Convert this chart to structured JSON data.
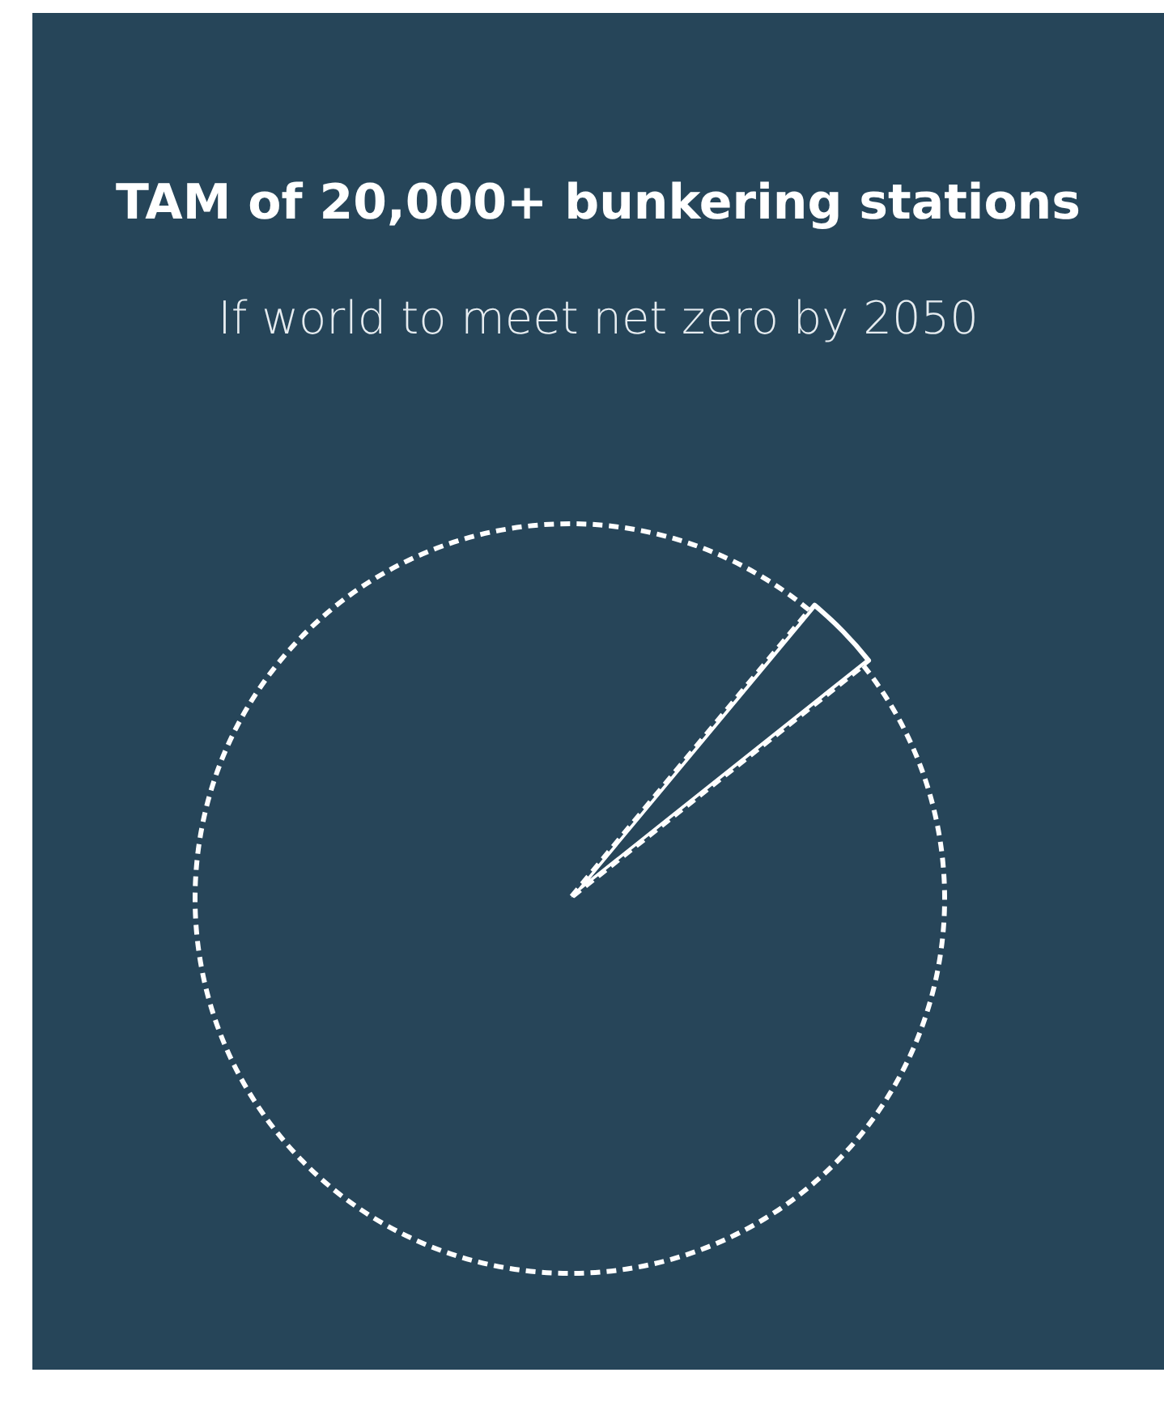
{
  "chart_data": {
    "type": "pie",
    "title": "TAM of 20,000+ bunkering stations",
    "subtitle": "If world to meet net zero by 2050",
    "categories": [
      null,
      null
    ],
    "values": [
      3.3,
      96.7
    ],
    "colors": [
      "#ffffff",
      "#ffffff"
    ],
    "line_style": "dashed",
    "legend": false
  }
}
